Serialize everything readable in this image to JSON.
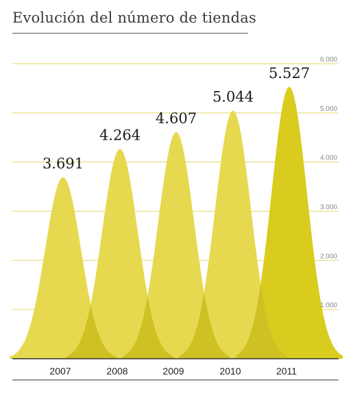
{
  "header": {
    "title": "Evolución del número de tiendas"
  },
  "chart_data": {
    "type": "area",
    "title": "Evolución del número de tiendas",
    "categories": [
      "2007",
      "2008",
      "2009",
      "2010",
      "2011"
    ],
    "values": [
      3691,
      4264,
      4607,
      5044,
      5527
    ],
    "value_labels": [
      "3.691",
      "4.264",
      "4.607",
      "5.044",
      "5.527"
    ],
    "y_ticks": [
      1000,
      2000,
      3000,
      4000,
      5000,
      6000
    ],
    "y_tick_labels": [
      "1.000",
      "2.000",
      "3.000",
      "4.000",
      "5.000",
      "6.000"
    ],
    "ylim": [
      0,
      6000
    ],
    "grid": true,
    "y_axis_position": "right",
    "colors": {
      "peak": "#e6d94f",
      "highlight_peak": "#d9cc1e",
      "overlap": "#cfc124",
      "grid": "#e3d96a",
      "axis": "#333333",
      "value_label": "#1a1a1a",
      "tick_label": "#888888"
    }
  }
}
